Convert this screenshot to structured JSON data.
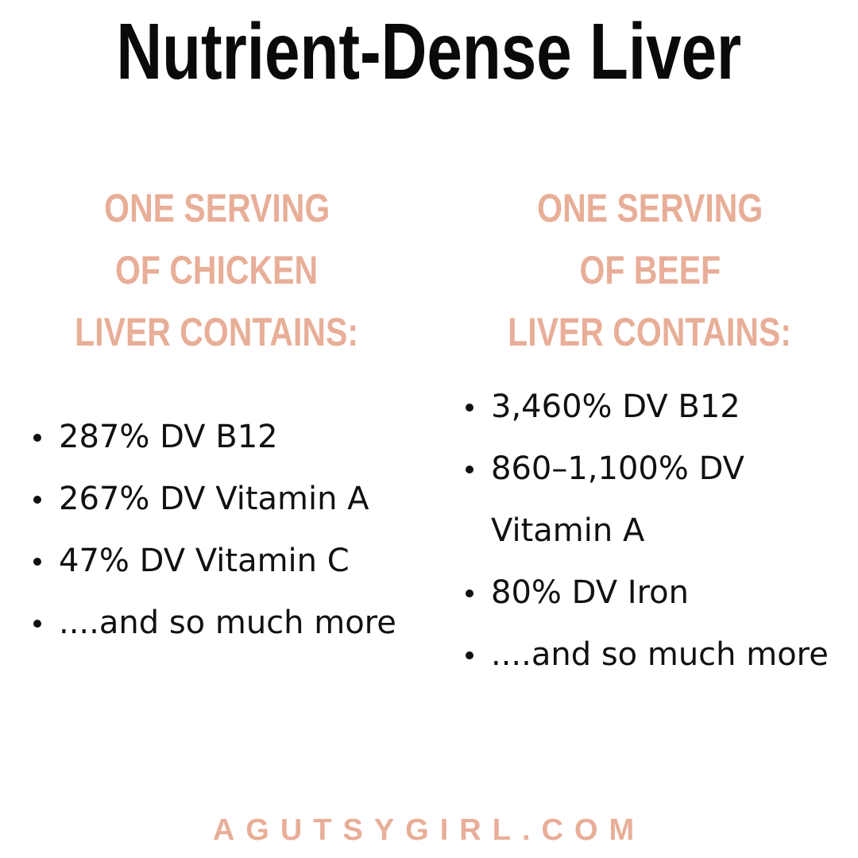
{
  "header": {
    "title": "Nutrient-Dense Liver"
  },
  "columns": [
    {
      "heading": [
        "ONE SERVING",
        "OF CHICKEN",
        "LIVER CONTAINS:"
      ],
      "items": [
        "287% DV B12",
        "267% DV Vitamin A",
        "47% DV Vitamin C",
        "....and so much more"
      ]
    },
    {
      "heading": [
        "ONE SERVING",
        "OF BEEF",
        "LIVER CONTAINS:"
      ],
      "items": [
        "3,460% DV B12",
        "860–1,100% DV Vitamin A",
        "80% DV Iron",
        "....and so much more"
      ]
    }
  ],
  "footer": {
    "text": "AGUTSYGIRL.COM"
  }
}
